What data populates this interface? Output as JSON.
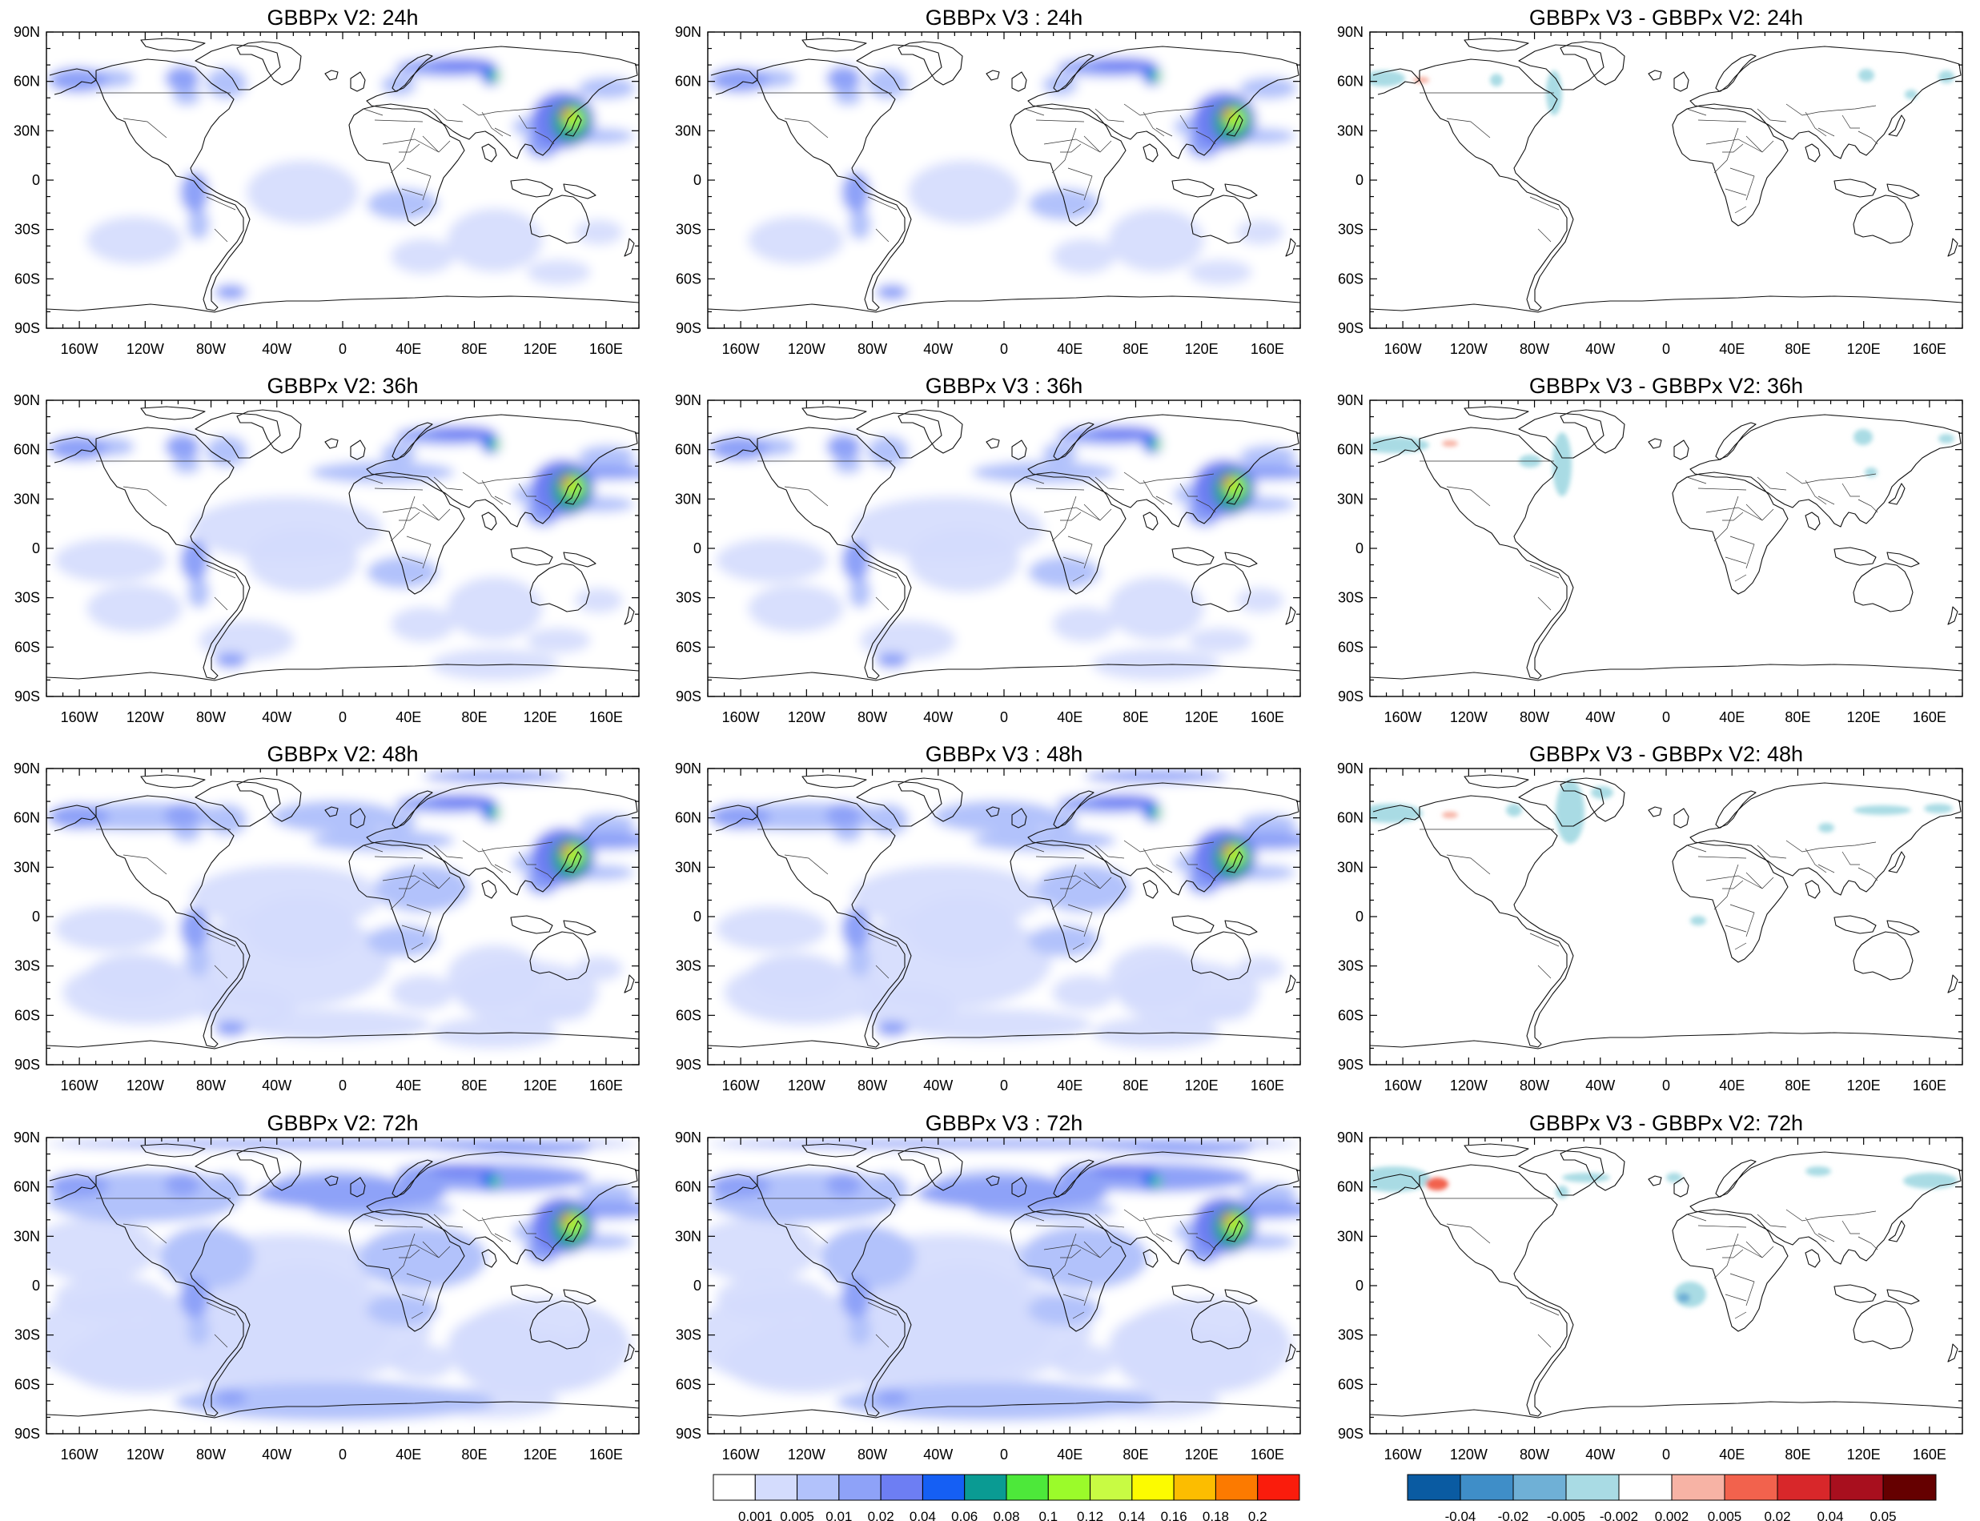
{
  "panels": [
    {
      "id": "v2-24h",
      "title": "GBBPx V2: 24h",
      "type": "field",
      "hour": 24
    },
    {
      "id": "v3-24h",
      "title": "GBBPx V3 : 24h",
      "type": "field",
      "hour": 24
    },
    {
      "id": "diff-24h",
      "title": "GBBPx V3 - GBBPx V2: 24h",
      "type": "diff",
      "hour": 24
    },
    {
      "id": "v2-36h",
      "title": "GBBPx V2: 36h",
      "type": "field",
      "hour": 36
    },
    {
      "id": "v3-36h",
      "title": "GBBPx V3 : 36h",
      "type": "field",
      "hour": 36
    },
    {
      "id": "diff-36h",
      "title": "GBBPx V3 - GBBPx V2: 36h",
      "type": "diff",
      "hour": 36
    },
    {
      "id": "v2-48h",
      "title": "GBBPx V2: 48h",
      "type": "field",
      "hour": 48
    },
    {
      "id": "v3-48h",
      "title": "GBBPx V3 : 48h",
      "type": "field",
      "hour": 48
    },
    {
      "id": "diff-48h",
      "title": "GBBPx V3 - GBBPx V2: 48h",
      "type": "diff",
      "hour": 48
    },
    {
      "id": "v2-72h",
      "title": "GBBPx V2: 72h",
      "type": "field",
      "hour": 72
    },
    {
      "id": "v3-72h",
      "title": "GBBPx V3 : 72h",
      "type": "field",
      "hour": 72
    },
    {
      "id": "diff-72h",
      "title": "GBBPx V3 - GBBPx V2: 72h",
      "type": "diff",
      "hour": 72
    }
  ],
  "lat_ticks": [
    "90N",
    "60N",
    "30N",
    "0",
    "30S",
    "60S",
    "90S"
  ],
  "lon_ticks": [
    "160W",
    "120W",
    "80W",
    "40W",
    "0",
    "40E",
    "80E",
    "120E",
    "160E"
  ],
  "field_colorbar": {
    "labels": [
      "0.001",
      "0.005",
      "0.01",
      "0.02",
      "0.04",
      "0.06",
      "0.08",
      "0.1",
      "0.12",
      "0.14",
      "0.16",
      "0.18",
      "0.2"
    ],
    "colors": [
      "#ffffff",
      "#d4dcfd",
      "#b2c2fb",
      "#8ea2f8",
      "#6d7ef3",
      "#155ff4",
      "#0a9b93",
      "#4de83a",
      "#9bfb2a",
      "#c8fb43",
      "#fcfb00",
      "#fcbd00",
      "#fc7a00",
      "#fa1c0c"
    ]
  },
  "diff_colorbar": {
    "labels": [
      "-0.04",
      "-0.02",
      "-0.005",
      "-0.002",
      "0.002",
      "0.005",
      "0.02",
      "0.04",
      "0.05"
    ],
    "colors": [
      "#0a5ba2",
      "#3f8ec8",
      "#6fb0d6",
      "#a9dbe4",
      "#ffffff",
      "#f7b3a5",
      "#f2624d",
      "#d8272a",
      "#a80f1e",
      "#650000"
    ]
  }
}
